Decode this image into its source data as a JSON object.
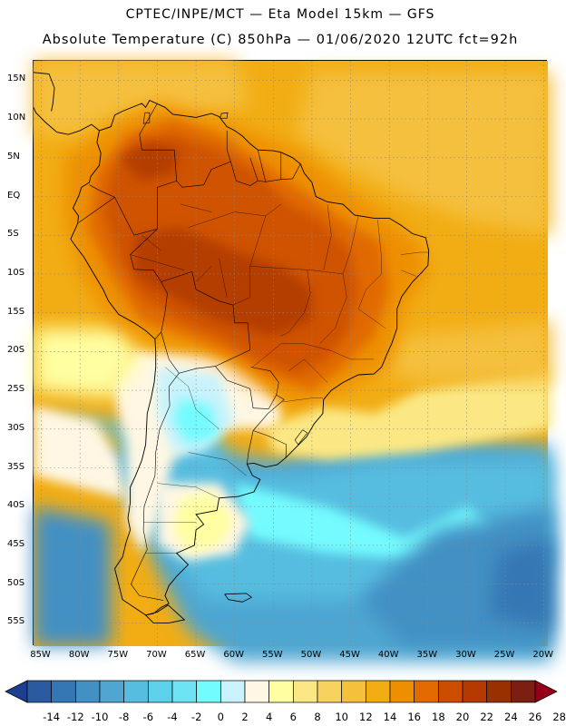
{
  "header": {
    "line1": "CPTEC/INPE/MCT —  Eta Model 15km — GFS",
    "line2": "Absolute Temperature (C) 850hPa — 01/06/2020 12UTC fct=92h"
  },
  "lat_labels": [
    "15N",
    "10N",
    "5N",
    "EQ",
    "5S",
    "10S",
    "15S",
    "20S",
    "25S",
    "30S",
    "35S",
    "40S",
    "45S",
    "50S",
    "55S"
  ],
  "lat_values": [
    15,
    10,
    5,
    0,
    -5,
    -10,
    -15,
    -20,
    -25,
    -30,
    -35,
    -40,
    -45,
    -50,
    -55
  ],
  "lon_labels": [
    "85W",
    "80W",
    "75W",
    "70W",
    "65W",
    "60W",
    "55W",
    "50W",
    "45W",
    "40W",
    "35W",
    "30W",
    "25W",
    "20W"
  ],
  "lon_values": [
    -85,
    -80,
    -75,
    -70,
    -65,
    -60,
    -55,
    -50,
    -45,
    -40,
    -35,
    -30,
    -25,
    -20
  ],
  "map_extent": {
    "lon_min": -86,
    "lon_max": -19.5,
    "lat_min": -58,
    "lat_max": 17.5
  },
  "colorbar": {
    "labels": [
      "-14",
      "-12",
      "-10",
      "-8",
      "-6",
      "-4",
      "-2",
      "0",
      "2",
      "4",
      "6",
      "8",
      "10",
      "12",
      "14",
      "16",
      "18",
      "20",
      "22",
      "24",
      "26",
      "28"
    ],
    "colors": [
      "#1d3f8f",
      "#2a5aa0",
      "#3577b4",
      "#4390c4",
      "#4ea6d1",
      "#56bde0",
      "#5dd0ea",
      "#6ee3f3",
      "#73fbfe",
      "#c8f3fc",
      "#fff7e3",
      "#fffea0",
      "#fbe884",
      "#f8d25e",
      "#f5c03c",
      "#f2ad14",
      "#ee8f00",
      "#e16b00",
      "#cc4d00",
      "#b43a00",
      "#993000",
      "#7d1e12",
      "#950018"
    ]
  },
  "field_colors": {
    "deep_red": "#b43c06",
    "red": "#cf5200",
    "dark_orange": "#e16b00",
    "orange": "#ee8f00",
    "amber": "#f2ad14",
    "gold": "#f5c03c",
    "yellow": "#fbe884",
    "pale_yellow": "#fffea0",
    "cream": "#fff7e3",
    "pale_cyan": "#c8f3fc",
    "cyan": "#73fbfe",
    "light_blue": "#56bde0",
    "mid_blue": "#4ea6d1",
    "blue": "#4390c4",
    "dark_blue": "#3577b4"
  }
}
